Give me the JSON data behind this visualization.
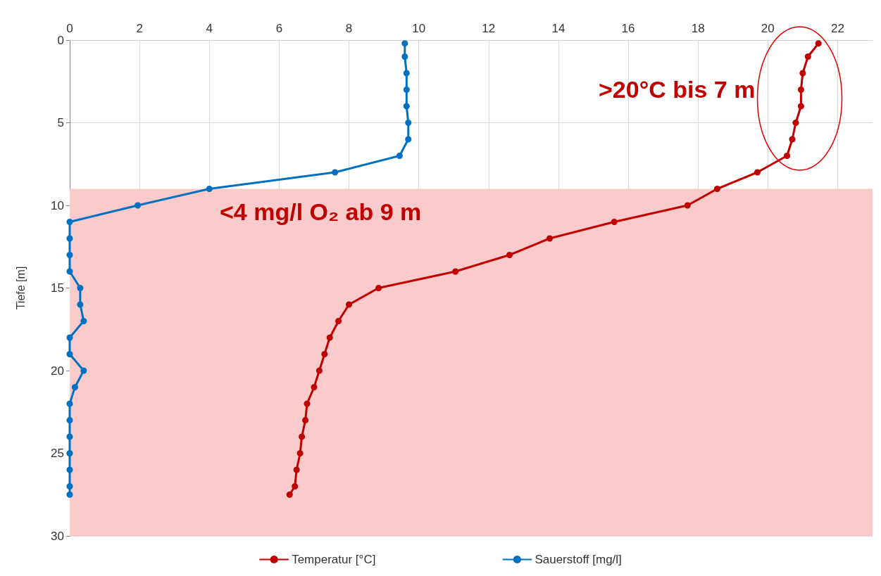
{
  "chart_data": {
    "type": "line",
    "ylabel": "Tiefe [m]",
    "xlim": [
      0,
      23
    ],
    "xticks": [
      0,
      2,
      4,
      6,
      8,
      10,
      12,
      14,
      16,
      18,
      20,
      22
    ],
    "ylim": [
      30,
      0
    ],
    "yticks": [
      0,
      5,
      10,
      15,
      20,
      25,
      30
    ],
    "grid": true,
    "legend": "bottom",
    "marker": "circle",
    "line_style": "solid",
    "series": [
      {
        "name": "Temperatur [°C]",
        "color": "#c00000",
        "x": [
          21.45,
          21.15,
          21.0,
          20.95,
          20.95,
          20.8,
          20.7,
          20.55,
          19.7,
          18.55,
          17.7,
          15.6,
          13.75,
          12.6,
          11.05,
          8.85,
          8.0,
          7.7,
          7.45,
          7.3,
          7.15,
          7.0,
          6.8,
          6.75,
          6.65,
          6.6,
          6.5,
          6.45,
          6.3
        ],
        "values": [
          0.2,
          1,
          2,
          3,
          4,
          5,
          6,
          7,
          8,
          9,
          10,
          11,
          12,
          13,
          14,
          15,
          16,
          17,
          18,
          19,
          20,
          21,
          22,
          23,
          24,
          25,
          26,
          27,
          27.5
        ]
      },
      {
        "name": "Sauerstoff [mg/l]",
        "color": "#0070c0",
        "x": [
          9.6,
          9.6,
          9.65,
          9.65,
          9.65,
          9.7,
          9.7,
          9.45,
          7.6,
          4.0,
          1.95,
          0,
          0,
          0,
          0,
          0.3,
          0.3,
          0.4,
          0,
          0,
          0.4,
          0.15,
          0,
          0,
          0,
          0,
          0,
          0,
          0
        ],
        "values": [
          0.2,
          1,
          2,
          3,
          4,
          5,
          6,
          7,
          8,
          9,
          10,
          11,
          12,
          13,
          14,
          15,
          16,
          17,
          18,
          19,
          20,
          21,
          22,
          23,
          24,
          25,
          26,
          27,
          27.5
        ]
      }
    ],
    "bands": [
      {
        "axis": "y",
        "from": 9,
        "to": 30,
        "color": "#fbcaca"
      }
    ],
    "annotations": [
      ">20°C bis 7 m",
      "<4 mg/l O₂ ab 9 m"
    ]
  }
}
